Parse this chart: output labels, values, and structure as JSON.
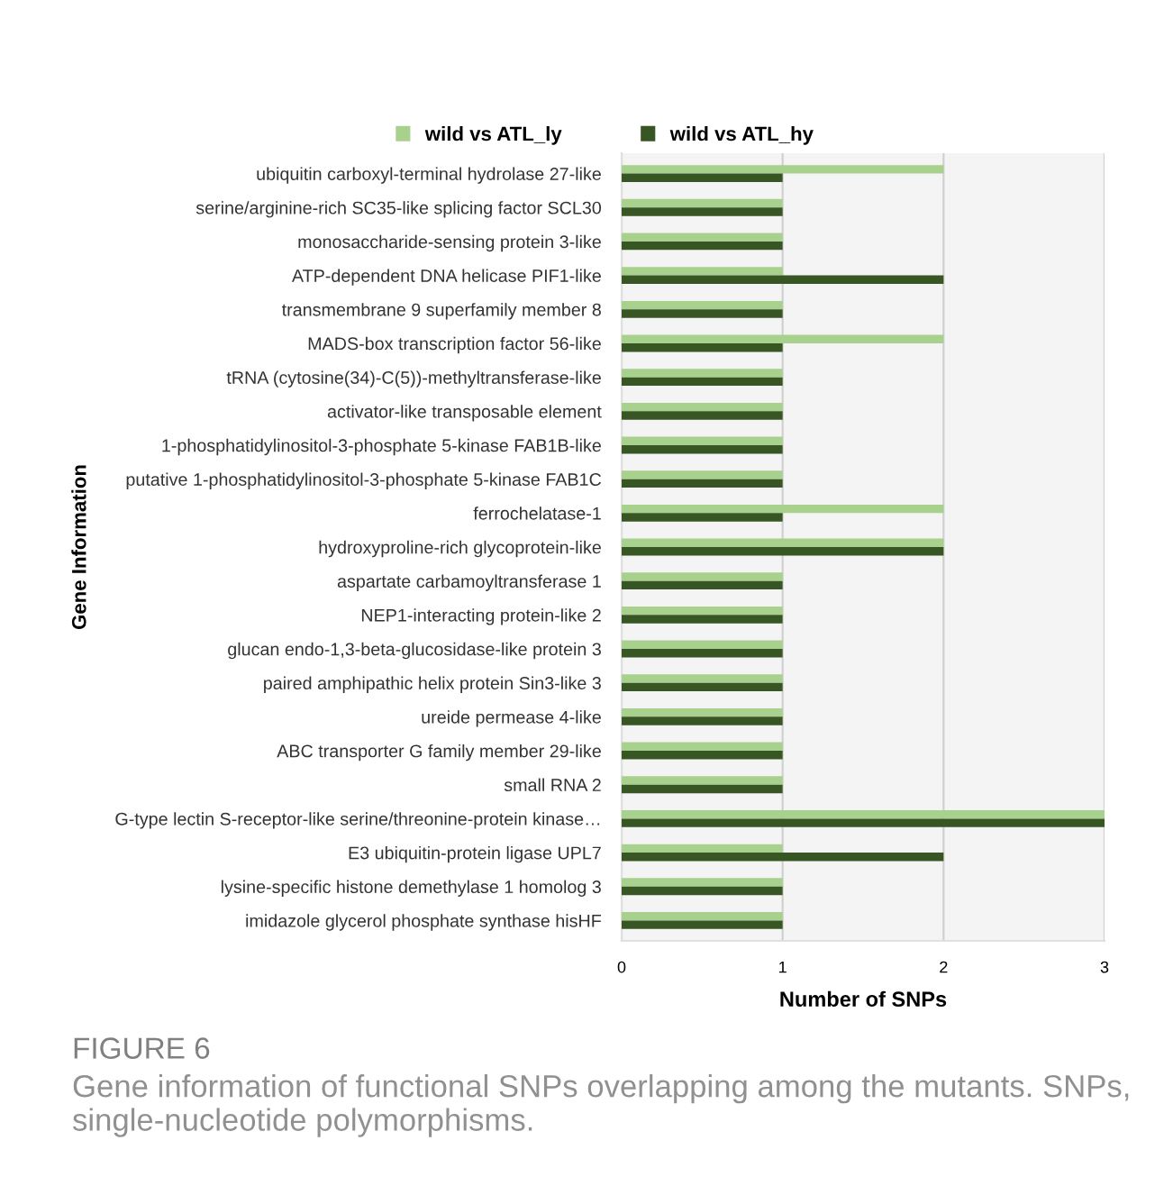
{
  "chart_data": {
    "type": "bar",
    "orientation": "horizontal",
    "xlabel": "Number of SNPs",
    "ylabel": "Gene Information",
    "categories": [
      "ubiquitin carboxyl-terminal hydrolase 27-like",
      "serine/arginine-rich SC35-like splicing factor SCL30",
      "monosaccharide-sensing protein 3-like",
      "ATP-dependent DNA helicase PIF1-like",
      "transmembrane 9 superfamily member 8",
      "MADS-box transcription factor 56-like",
      "tRNA (cytosine(34)-C(5))-methyltransferase-like",
      "activator-like transposable element",
      "1-phosphatidylinositol-3-phosphate 5-kinase FAB1B-like",
      "putative 1-phosphatidylinositol-3-phosphate 5-kinase FAB1C",
      "ferrochelatase-1",
      "hydroxyproline-rich glycoprotein-like",
      "aspartate carbamoyltransferase 1",
      "NEP1-interacting protein-like 2",
      "glucan endo-1,3-beta-glucosidase-like protein 3",
      "paired amphipathic helix protein Sin3-like 3",
      "ureide permease 4-like",
      "ABC transporter G family member 29-like",
      "small RNA 2",
      "G-type lectin S-receptor-like serine/threonine-protein kinase…",
      "E3 ubiquitin-protein ligase UPL7",
      "lysine-specific histone demethylase 1 homolog 3",
      "imidazole glycerol phosphate synthase hisHF"
    ],
    "series": [
      {
        "name": "wild vs ATL_ly",
        "color": "#a9d18e",
        "values": [
          2,
          1,
          1,
          1,
          1,
          2,
          1,
          1,
          1,
          1,
          2,
          2,
          1,
          1,
          1,
          1,
          1,
          1,
          1,
          3,
          1,
          1,
          1
        ]
      },
      {
        "name": "wild vs ATL_hy",
        "color": "#375623",
        "values": [
          1,
          1,
          1,
          2,
          1,
          1,
          1,
          1,
          1,
          1,
          1,
          2,
          1,
          1,
          1,
          1,
          1,
          1,
          1,
          3,
          2,
          1,
          1
        ]
      }
    ],
    "xlim": [
      0,
      3
    ],
    "xticks": [
      0,
      1,
      2,
      3
    ],
    "grid": "x",
    "legend": "top",
    "annotations": [
      "FIGURE 6",
      "Gene information of functional SNPs overlapping among the mutants. SNPs, single-nucleotide polymorphisms."
    ]
  }
}
